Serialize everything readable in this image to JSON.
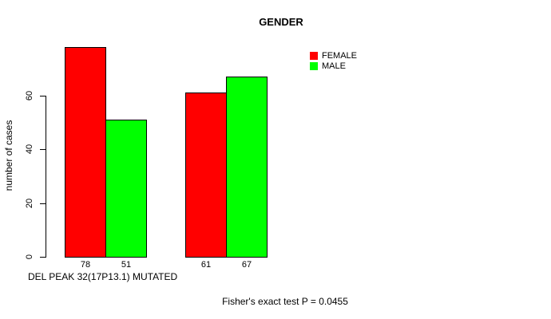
{
  "page": {
    "background": "#FFFFFF",
    "text_color": "#000000"
  },
  "chart_data": {
    "type": "bar",
    "title": "GENDER",
    "ylabel": "number of cases",
    "xlabel": "DEL PEAK 32(17P13.1) MUTATED",
    "annotation": "Fisher's exact test P = 0.0455",
    "categories": [
      "",
      ""
    ],
    "series": [
      {
        "name": "FEMALE",
        "color": "#FF0000",
        "values": [
          78,
          61
        ]
      },
      {
        "name": "MALE",
        "color": "#00FF00",
        "values": [
          51,
          67
        ]
      }
    ],
    "bar_value_labels_shown": true,
    "yticks": [
      0,
      20,
      40,
      60
    ],
    "ylim": [
      0,
      78
    ],
    "grid": false,
    "legend_position": "top-right-inside",
    "bar_border_color": "#000000"
  }
}
